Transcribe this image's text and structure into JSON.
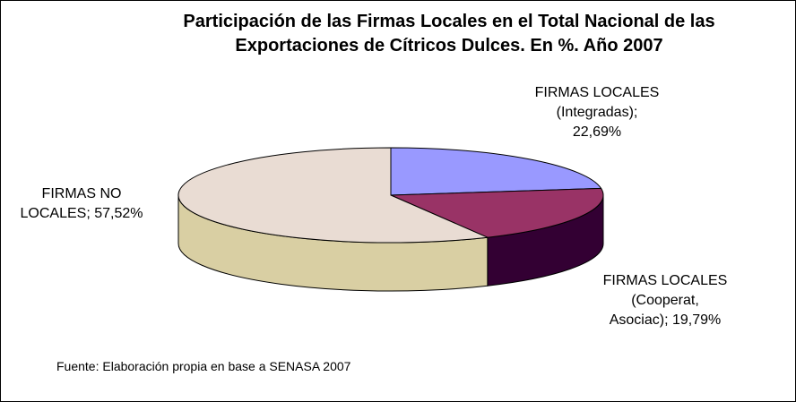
{
  "chart_data": {
    "type": "pie",
    "title": [
      "Participación de las Firmas Locales en el Total Nacional de las",
      "Exportaciones de Cítricos Dulces. En %. Año 2007"
    ],
    "slices": [
      {
        "label_lines": [
          "FIRMAS LOCALES",
          "(Integradas);",
          "22,69%"
        ],
        "value": 22.69,
        "color": "#9999ff",
        "side_color": "#5c5c99"
      },
      {
        "label_lines": [
          "FIRMAS LOCALES",
          "(Cooperat,",
          "Asociac); 19,79%"
        ],
        "value": 19.79,
        "color": "#993366",
        "side_color": "#330033"
      },
      {
        "label_lines": [
          "FIRMAS NO",
          "LOCALES; 57,52%"
        ],
        "value": 57.52,
        "color": "#e9dcd3",
        "side_color": "#d9cfa3"
      }
    ],
    "source": "Fuente: Elaboración propia en base a SENASA 2007"
  }
}
